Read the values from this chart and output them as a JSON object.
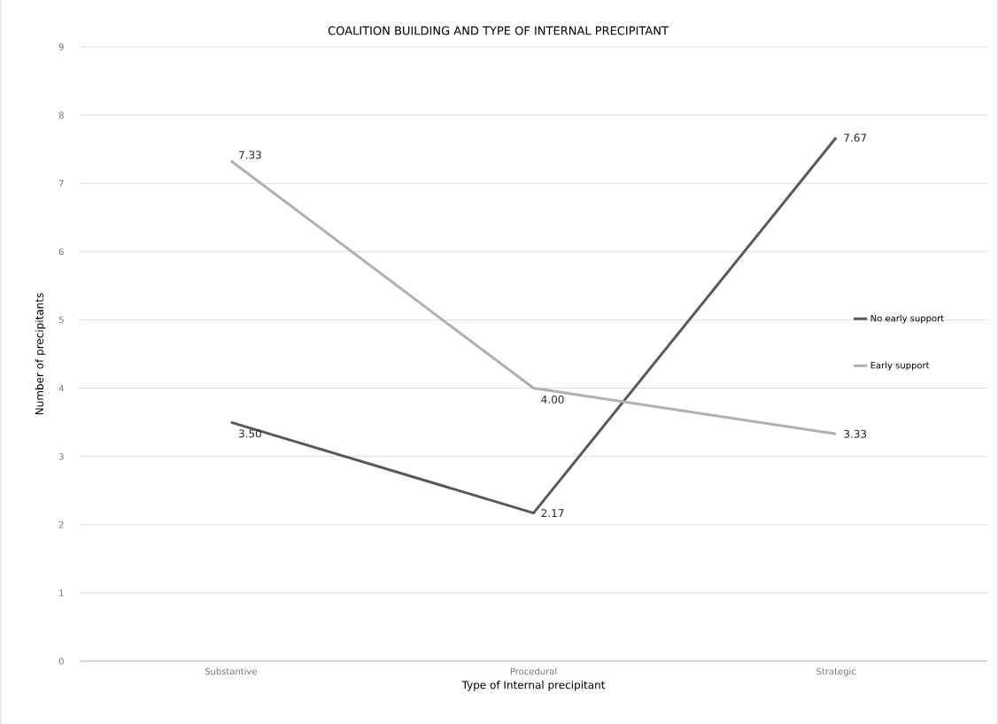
{
  "chart_data": {
    "type": "line",
    "title": "COALITION BUILDING AND TYPE OF INTERNAL PRECIPITANT",
    "xlabel": "Type of Internal precipitant",
    "ylabel": "Number of precipitants",
    "categories": [
      "Substantive",
      "Procedural",
      "Strategic"
    ],
    "series": [
      {
        "name": "No early support",
        "color": "#595959",
        "values": [
          3.5,
          2.17,
          7.67
        ],
        "value_labels": [
          "3.50",
          "2.17",
          "7.67"
        ]
      },
      {
        "name": "Early support",
        "color": "#b0b0b0",
        "values": [
          7.33,
          4.0,
          3.33
        ],
        "value_labels": [
          "7.33",
          "4.00",
          "3.33"
        ]
      }
    ],
    "ylim": [
      0,
      9
    ],
    "yticks": [
      0,
      1,
      2,
      3,
      4,
      5,
      6,
      7,
      8,
      9
    ],
    "grid": "y",
    "legend": "right",
    "marker": "none",
    "line_style": "solid"
  }
}
